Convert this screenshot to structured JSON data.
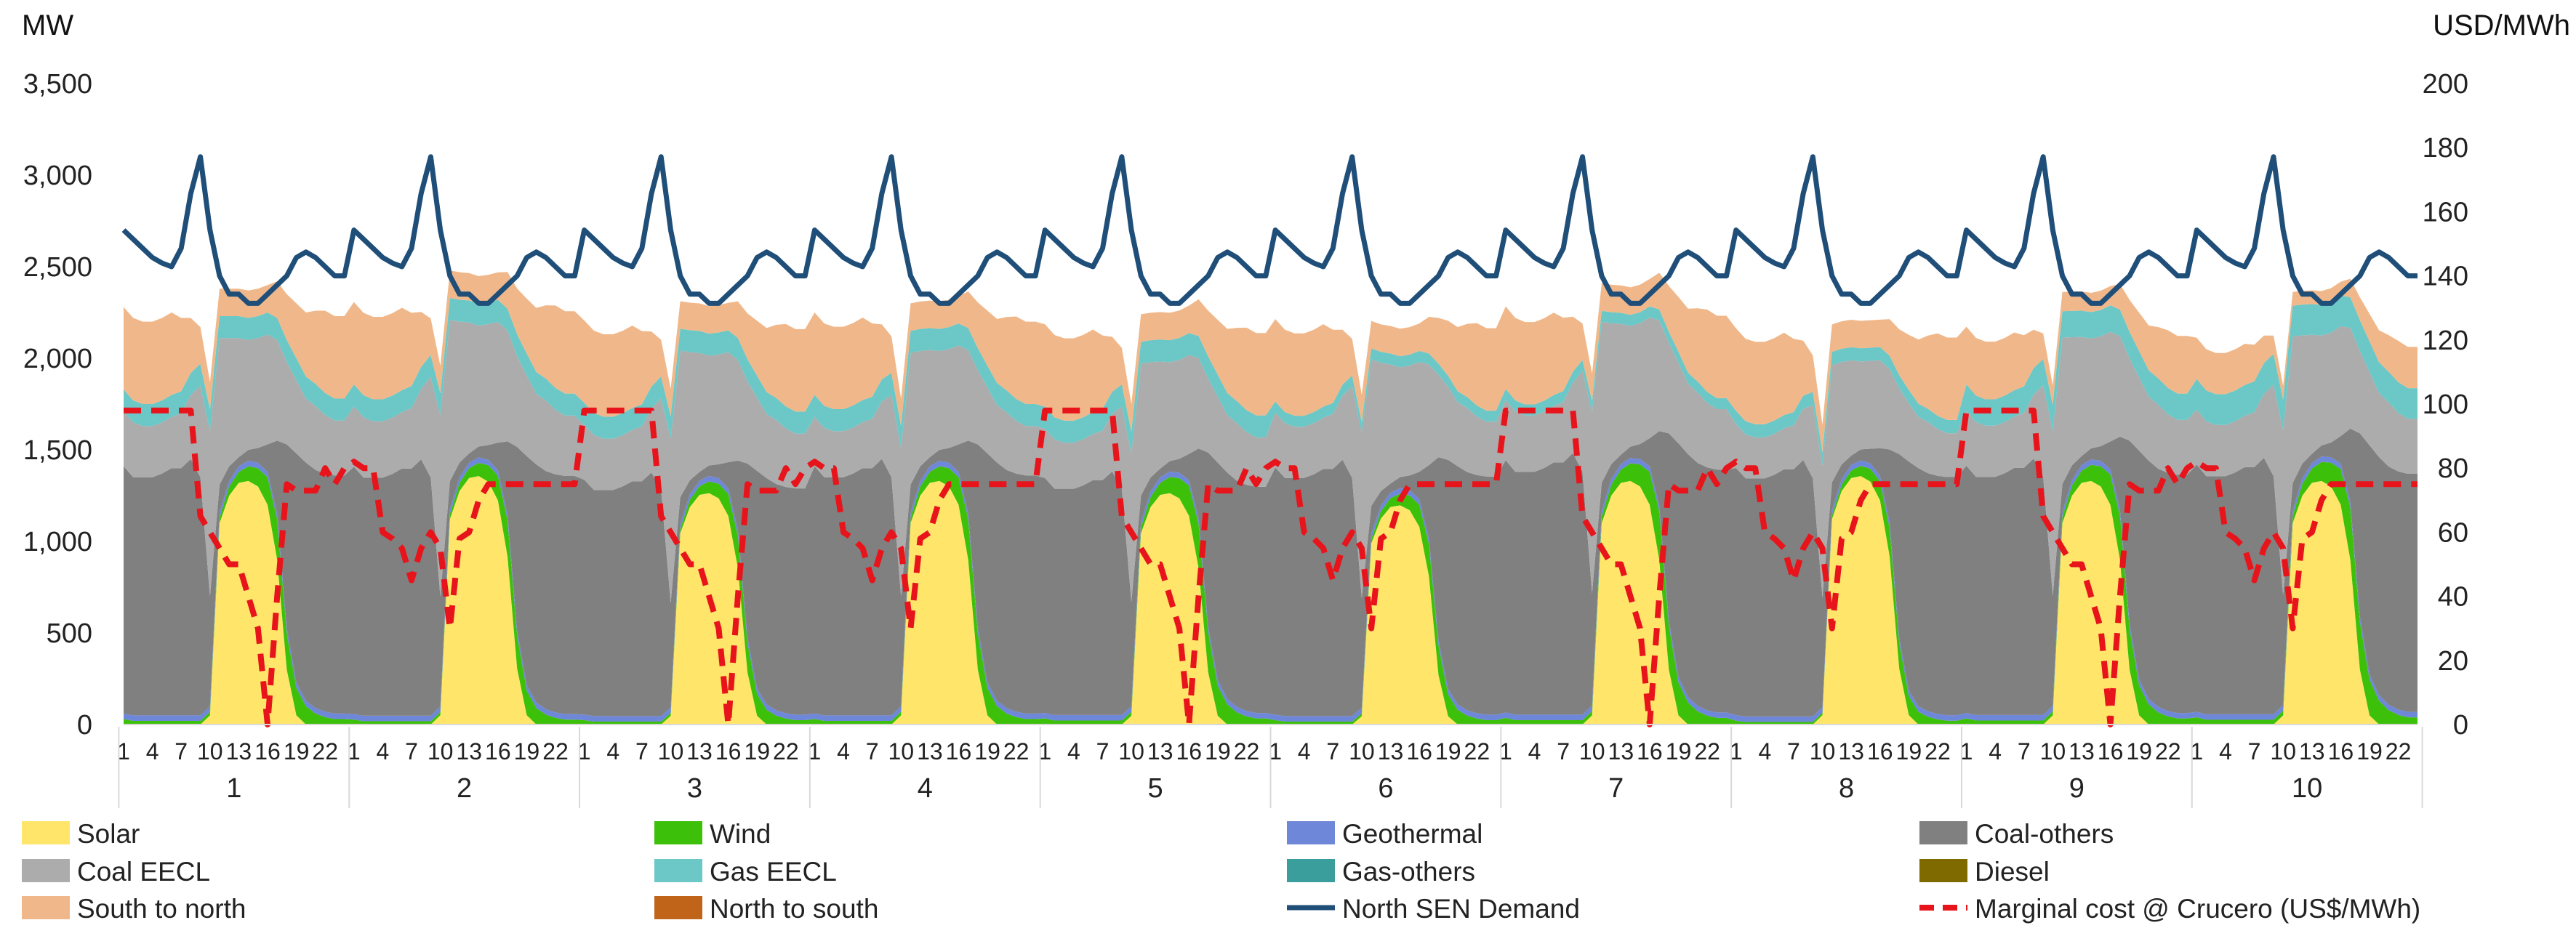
{
  "chart_data": {
    "type": "area",
    "y_unit_left": "MW",
    "y_unit_right": "USD/MWh",
    "ylim_left": [
      0,
      3500
    ],
    "ylim_right": [
      0,
      200
    ],
    "yticks_left": [
      "0",
      "500",
      "1,000",
      "1,500",
      "2,000",
      "2,500",
      "3,000",
      "3,500"
    ],
    "yticks_right": [
      "0",
      "20",
      "40",
      "60",
      "80",
      "100",
      "120",
      "140",
      "160",
      "180",
      "200"
    ],
    "hour_ticks": [
      "1",
      "4",
      "7",
      "10",
      "13",
      "16",
      "19",
      "22"
    ],
    "days": [
      "1",
      "2",
      "3",
      "4",
      "5",
      "6",
      "7",
      "8",
      "9",
      "10"
    ],
    "grid": false,
    "legend_position": "bottom",
    "stack_series": [
      {
        "name": "Solar",
        "color": "#FFE66B",
        "profile": [
          0,
          0,
          0,
          0,
          0,
          0,
          0,
          0,
          0,
          50,
          1100,
          1250,
          1320,
          1330,
          1300,
          1200,
          900,
          300,
          50,
          0,
          0,
          0,
          0,
          0
        ],
        "day_scale": [
          1,
          1.02,
          0.95,
          1,
          0.95,
          0.9,
          1,
          1.02,
          1,
          1
        ]
      },
      {
        "name": "Wind",
        "color": "#3DC00A",
        "profile": [
          30,
          20,
          20,
          20,
          20,
          20,
          20,
          20,
          20,
          20,
          30,
          50,
          60,
          80,
          100,
          150,
          220,
          200,
          150,
          100,
          60,
          40,
          30,
          30
        ],
        "day_scale": [
          1,
          0.9,
          0.8,
          1,
          1.1,
          0.8,
          1.2,
          0.7,
          1.1,
          1.3
        ]
      },
      {
        "name": "Geothermal",
        "color": "#6F87D8",
        "profile": [
          30,
          30,
          30,
          30,
          30,
          30,
          30,
          30,
          30,
          30,
          30,
          30,
          30,
          30,
          30,
          30,
          30,
          30,
          30,
          30,
          30,
          30,
          30,
          30
        ],
        "day_scale": [
          1,
          1,
          1,
          1,
          1,
          1,
          1,
          1,
          1,
          1
        ]
      },
      {
        "name": "Coal-others",
        "color": "#808080",
        "profile": [
          1350,
          1300,
          1300,
          1300,
          1320,
          1350,
          1350,
          1400,
          1300,
          600,
          150,
          80,
          50,
          60,
          80,
          150,
          400,
          1000,
          1250,
          1300,
          1300,
          1300,
          1300,
          1300
        ],
        "day_scale": [
          1,
          1,
          0.95,
          1,
          0.95,
          1,
          1.02,
          1,
          1,
          1
        ]
      },
      {
        "name": "Coal EECL",
        "color": "#ACACAC",
        "profile": [
          300,
          300,
          280,
          280,
          280,
          280,
          300,
          350,
          500,
          900,
          800,
          700,
          650,
          600,
          600,
          600,
          550,
          450,
          400,
          350,
          350,
          320,
          300,
          300
        ],
        "day_scale": [
          1,
          1.1,
          1,
          0.9,
          0.9,
          1,
          1.1,
          0.8,
          1,
          1
        ]
      },
      {
        "name": "Gas EECL",
        "color": "#6CC7C7",
        "profile": [
          120,
          120,
          120,
          120,
          120,
          120,
          120,
          120,
          120,
          120,
          120,
          120,
          120,
          120,
          120,
          120,
          120,
          120,
          120,
          120,
          120,
          120,
          120,
          120
        ],
        "day_scale": [
          1,
          1,
          1,
          1,
          1,
          0.5,
          0.5,
          0.6,
          1.2,
          1.4
        ]
      },
      {
        "name": "Gas-others",
        "color": "#3A9E9C",
        "profile": [
          0,
          0,
          0,
          0,
          0,
          0,
          0,
          0,
          0,
          0,
          0,
          0,
          0,
          0,
          0,
          0,
          0,
          0,
          0,
          0,
          0,
          0,
          0,
          0
        ],
        "day_scale": [
          0,
          0,
          0,
          0,
          0,
          0,
          0,
          1,
          1,
          1
        ]
      },
      {
        "name": "Diesel",
        "color": "#7F6A00",
        "profile": [
          0,
          0,
          0,
          0,
          0,
          0,
          0,
          0,
          0,
          0,
          0,
          0,
          0,
          0,
          0,
          0,
          0,
          0,
          0,
          0,
          0,
          0,
          0,
          0
        ],
        "day_scale": [
          0,
          0,
          0,
          0,
          0,
          0,
          1,
          0,
          0,
          0
        ]
      },
      {
        "name": "South to north",
        "color": "#F0B88A",
        "profile": [
          450,
          450,
          450,
          450,
          450,
          450,
          400,
          300,
          200,
          150,
          150,
          150,
          150,
          150,
          150,
          150,
          200,
          250,
          300,
          350,
          400,
          450,
          450,
          450
        ],
        "day_scale": [
          1,
          1,
          1,
          1,
          1,
          1,
          1,
          1,
          0.7,
          0.5
        ]
      },
      {
        "name": "North to south",
        "color": "#C0641A",
        "profile": [
          0,
          0,
          0,
          0,
          0,
          0,
          0,
          0,
          0,
          0,
          0,
          0,
          0,
          0,
          0,
          0,
          0,
          0,
          0,
          0,
          0,
          0,
          0,
          0
        ],
        "day_scale": [
          0,
          1,
          0,
          0,
          0,
          0,
          0,
          0,
          1,
          1
        ]
      }
    ],
    "line_series": [
      {
        "name": "North SEN Demand",
        "color": "#1F4E79",
        "axis": "left",
        "values": [
          2700,
          2650,
          2600,
          2550,
          2520,
          2500,
          2600,
          2900,
          3100,
          2700,
          2450,
          2350,
          2350,
          2300,
          2300,
          2350,
          2400,
          2450,
          2550,
          2580,
          2550,
          2500,
          2450,
          2450
        ]
      },
      {
        "name": "Marginal cost @ Crucero (US$/MWh)",
        "color": "#E8141B",
        "axis": "right",
        "dashed": true,
        "values": [
          98,
          98,
          98,
          98,
          98,
          98,
          98,
          98,
          65,
          60,
          55,
          50,
          50,
          40,
          30,
          0,
          40,
          75,
          73,
          73,
          73,
          80,
          75,
          80,
          82,
          80,
          80,
          60,
          58,
          55,
          45,
          55,
          60,
          55,
          30,
          58,
          60,
          70,
          75,
          75,
          75,
          75,
          75,
          75,
          75,
          75,
          75,
          75
        ]
      }
    ]
  },
  "legend": [
    {
      "label": "Solar",
      "color": "#FFE66B",
      "kind": "box"
    },
    {
      "label": "Wind",
      "color": "#3DC00A",
      "kind": "box"
    },
    {
      "label": "Geothermal",
      "color": "#6F87D8",
      "kind": "box"
    },
    {
      "label": "Coal-others",
      "color": "#808080",
      "kind": "box"
    },
    {
      "label": "Coal EECL",
      "color": "#ACACAC",
      "kind": "box"
    },
    {
      "label": "Gas EECL",
      "color": "#6CC7C7",
      "kind": "box"
    },
    {
      "label": "Gas-others",
      "color": "#3A9E9C",
      "kind": "box"
    },
    {
      "label": "Diesel",
      "color": "#7F6A00",
      "kind": "box"
    },
    {
      "label": "South to north",
      "color": "#F0B88A",
      "kind": "box"
    },
    {
      "label": "North to south",
      "color": "#C0641A",
      "kind": "box"
    },
    {
      "label": "North SEN Demand",
      "color": "#1F4E79",
      "kind": "line"
    },
    {
      "label": "Marginal cost @ Crucero (US$/MWh)",
      "color": "#E8141B",
      "kind": "dash"
    }
  ]
}
